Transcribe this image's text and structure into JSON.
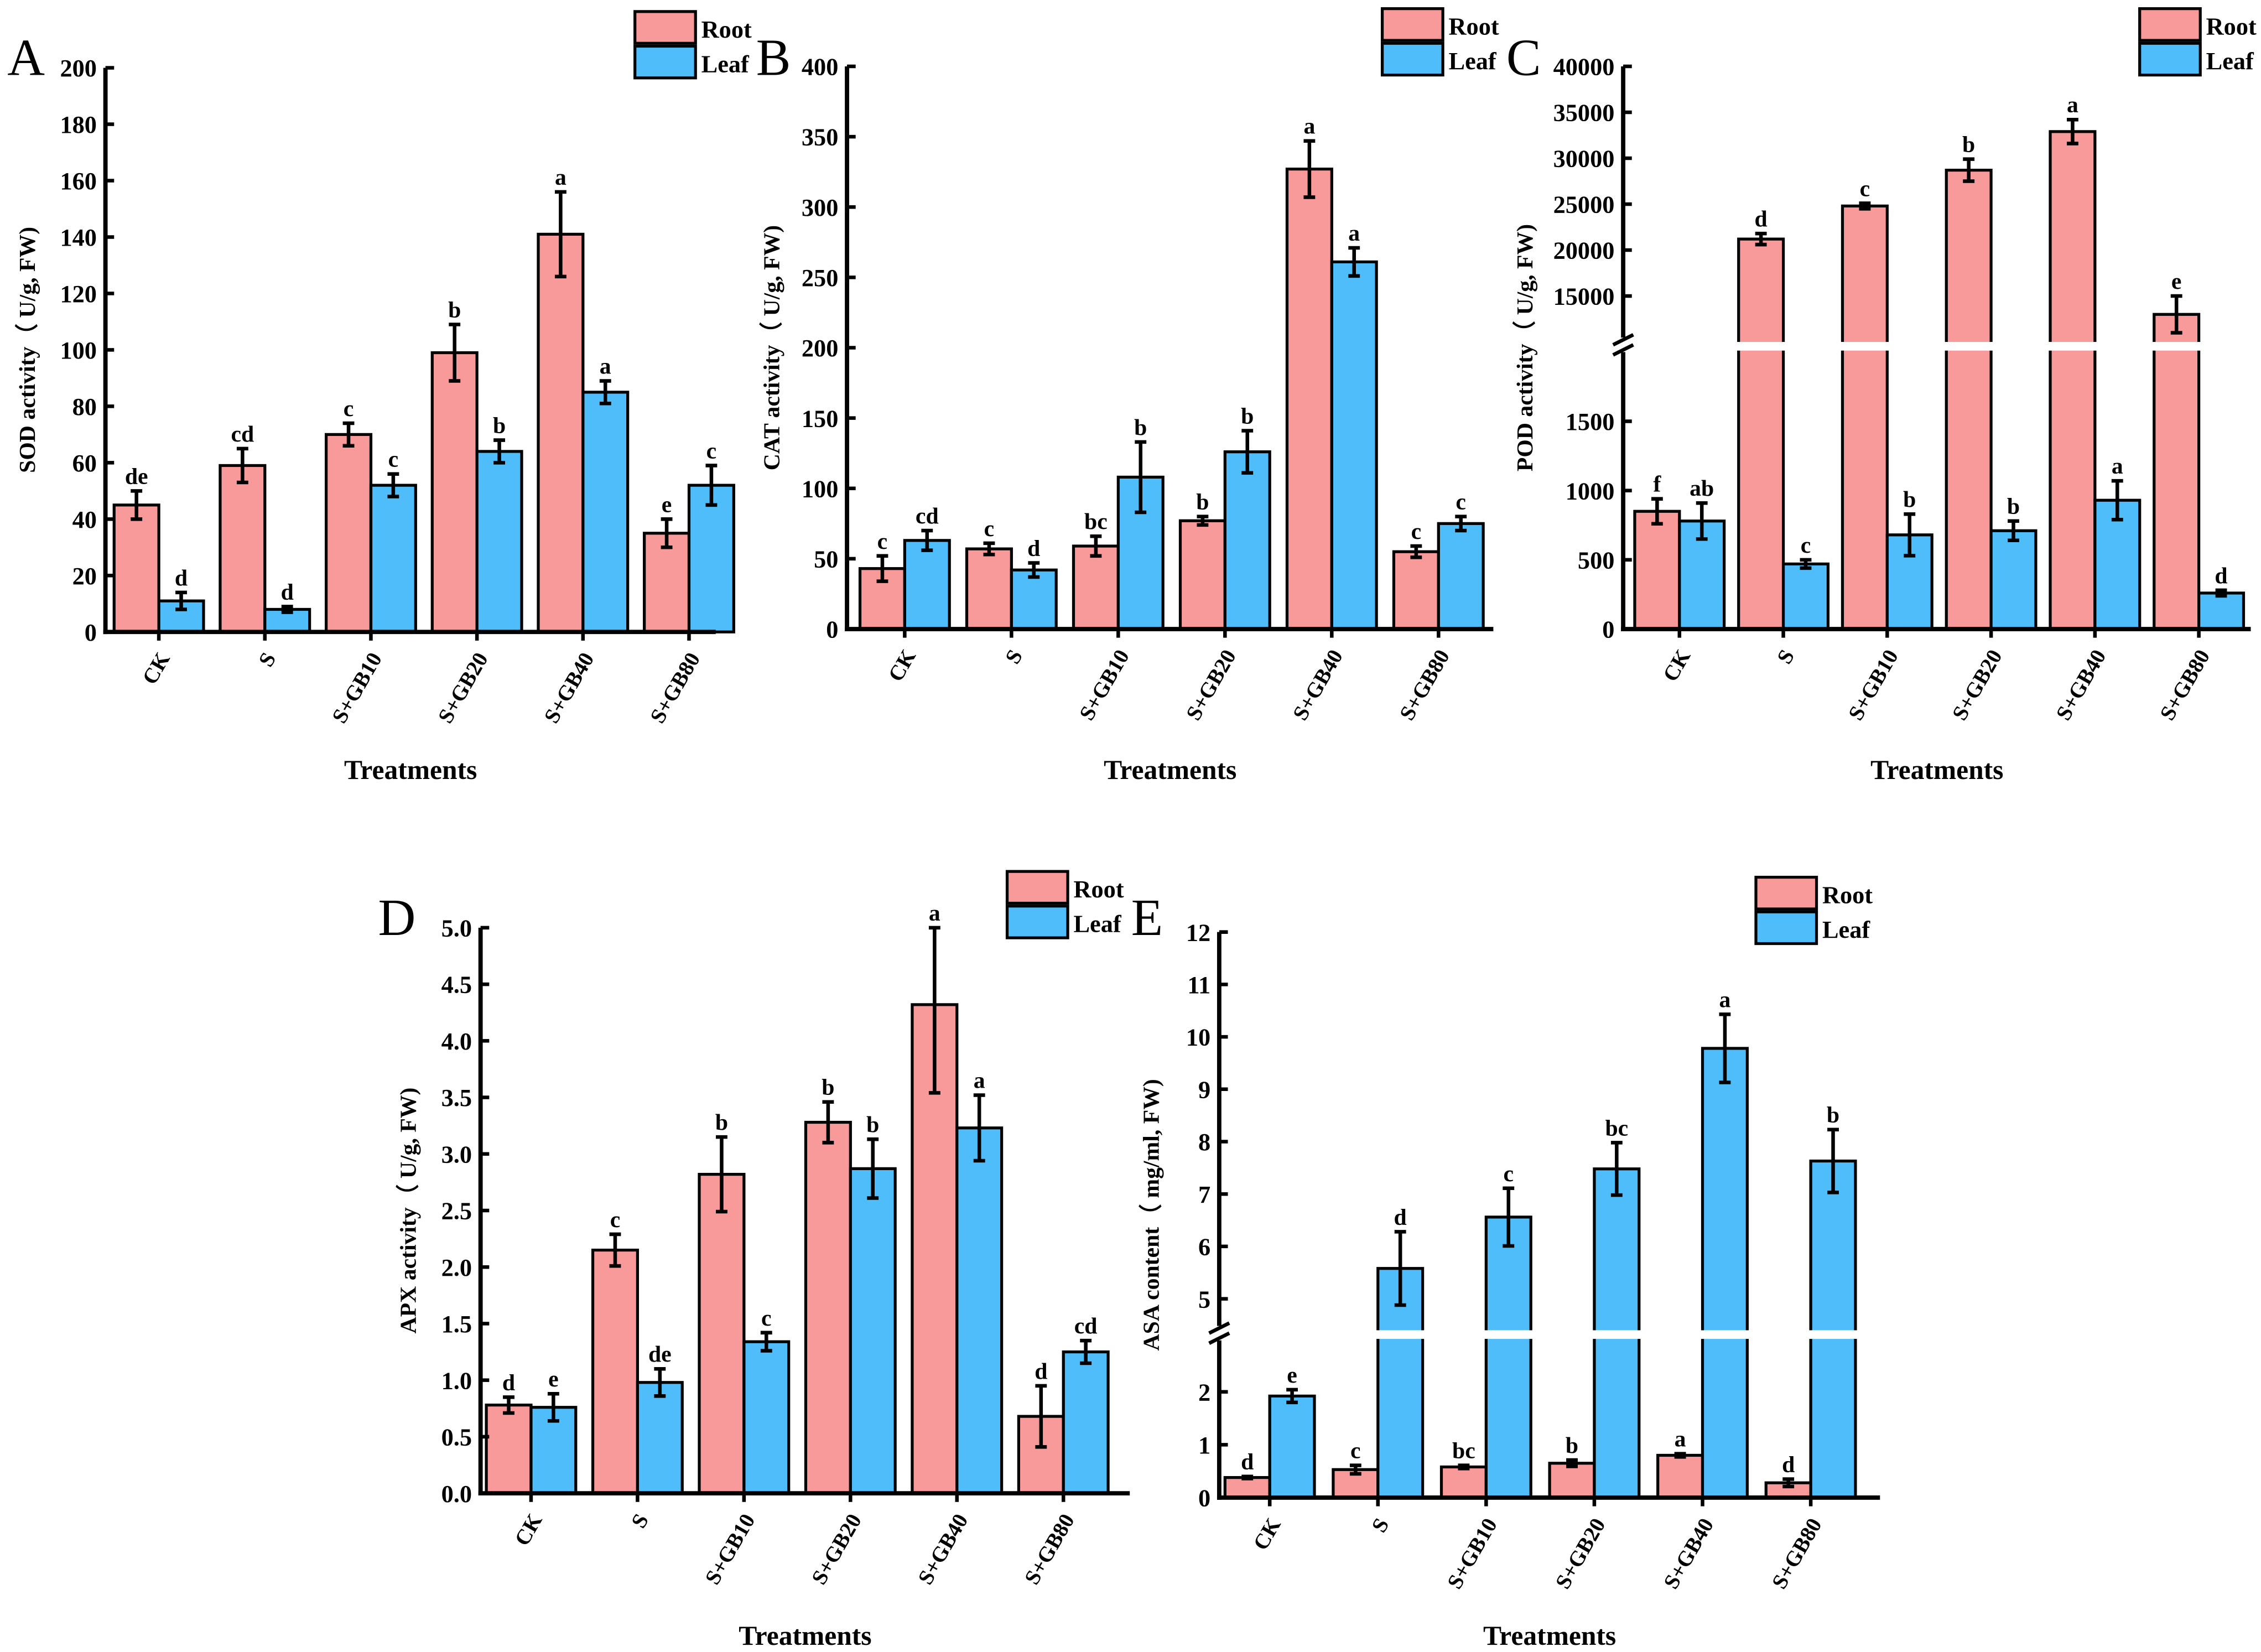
{
  "colors": {
    "root": "#F99A9A",
    "leaf": "#4FBDF9"
  },
  "chart_data": [
    {
      "type": "bar",
      "panel": "A",
      "ylabel": "SOD activity（ U/g, FW)",
      "xlabel": "Treatments",
      "categories": [
        "CK",
        "S",
        "S+GB10",
        "S+GB20",
        "S+GB40",
        "S+GB80"
      ],
      "legend": [
        "Root",
        "Leaf"
      ],
      "legend_placement": "top-right",
      "ylim": [
        0,
        200
      ],
      "yticks": [
        0,
        20,
        40,
        60,
        80,
        100,
        120,
        140,
        160,
        180,
        200
      ],
      "series": [
        {
          "name": "Root",
          "values": [
            45,
            59,
            70,
            99,
            141,
            35
          ],
          "errors": [
            5,
            6,
            4,
            10,
            15,
            5
          ],
          "letters": [
            "de",
            "cd",
            "c",
            "b",
            "a",
            "e"
          ]
        },
        {
          "name": "Leaf",
          "values": [
            11,
            8,
            52,
            64,
            85,
            52
          ],
          "errors": [
            3,
            1,
            4,
            4,
            4,
            7
          ],
          "letters": [
            "d",
            "d",
            "c",
            "b",
            "a",
            "c"
          ]
        }
      ]
    },
    {
      "type": "bar",
      "panel": "B",
      "ylabel": "CAT activity（ U/g, FW)",
      "xlabel": "Treatments",
      "categories": [
        "CK",
        "S",
        "S+GB10",
        "S+GB20",
        "S+GB40",
        "S+GB80"
      ],
      "legend": [
        "Root",
        "Leaf"
      ],
      "legend_placement": "top-right",
      "ylim": [
        0,
        400
      ],
      "yticks": [
        0,
        50,
        100,
        150,
        200,
        250,
        300,
        350,
        400
      ],
      "series": [
        {
          "name": "Root",
          "values": [
            43,
            57,
            59,
            77,
            327,
            55
          ],
          "errors": [
            9,
            4,
            7,
            3,
            20,
            4
          ],
          "letters": [
            "c",
            "c",
            "bc",
            "b",
            "a",
            "c"
          ]
        },
        {
          "name": "Leaf",
          "values": [
            63,
            42,
            108,
            126,
            261,
            75
          ],
          "errors": [
            7,
            5,
            25,
            15,
            10,
            5
          ],
          "letters": [
            "cd",
            "d",
            "b",
            "b",
            "a",
            "c"
          ]
        }
      ]
    },
    {
      "type": "bar",
      "panel": "C",
      "ylabel": "POD activity（ U/g, FW)",
      "xlabel": "Treatments",
      "categories": [
        "CK",
        "S",
        "S+GB10",
        "S+GB20",
        "S+GB40",
        "S+GB80"
      ],
      "legend": [
        "Root",
        "Leaf"
      ],
      "legend_placement": "top-right",
      "ylim": [
        0,
        40000
      ],
      "axis_break": [
        2000,
        10000
      ],
      "yticks": [
        0,
        500,
        1000,
        1500,
        15000,
        20000,
        25000,
        30000,
        35000,
        40000
      ],
      "series": [
        {
          "name": "Root",
          "values": [
            850,
            21200,
            24800,
            28700,
            32900,
            13000
          ],
          "errors": [
            90,
            600,
            300,
            1200,
            1300,
            2000
          ],
          "letters": [
            "f",
            "d",
            "c",
            "b",
            "a",
            "e"
          ]
        },
        {
          "name": "Leaf",
          "values": [
            780,
            470,
            680,
            710,
            930,
            260
          ],
          "errors": [
            130,
            30,
            150,
            70,
            140,
            20
          ],
          "letters": [
            "ab",
            "c",
            "b",
            "b",
            "a",
            "d"
          ]
        }
      ]
    },
    {
      "type": "bar",
      "panel": "D",
      "ylabel": "APX activity（ U/g, FW)",
      "xlabel": "Treatments",
      "categories": [
        "CK",
        "S",
        "S+GB10",
        "S+GB20",
        "S+GB40",
        "S+GB80"
      ],
      "legend": [
        "Root",
        "Leaf"
      ],
      "legend_placement": "top-right",
      "ylim": [
        0,
        5
      ],
      "yticks": [
        "0.0",
        "0.5",
        "1.0",
        "1.5",
        "2.0",
        "2.5",
        "3.0",
        "3.5",
        "4.0",
        "4.5",
        "5.0"
      ],
      "series": [
        {
          "name": "Root",
          "values": [
            0.78,
            2.15,
            2.82,
            3.28,
            4.32,
            0.68
          ],
          "errors": [
            0.07,
            0.14,
            0.33,
            0.18,
            0.78,
            0.27
          ],
          "letters": [
            "d",
            "c",
            "b",
            "b",
            "a",
            "d"
          ]
        },
        {
          "name": "Leaf",
          "values": [
            0.76,
            0.98,
            1.34,
            2.87,
            3.23,
            1.25
          ],
          "errors": [
            0.12,
            0.12,
            0.08,
            0.26,
            0.29,
            0.1
          ],
          "letters": [
            "e",
            "de",
            "c",
            "b",
            "a",
            "cd"
          ]
        }
      ]
    },
    {
      "type": "bar",
      "panel": "E",
      "ylabel": "ASA content（ mg/ml, FW)",
      "xlabel": "Treatments",
      "categories": [
        "CK",
        "S",
        "S+GB10",
        "S+GB20",
        "S+GB40",
        "S+GB80"
      ],
      "legend": [
        "Root",
        "Leaf"
      ],
      "legend_placement": "top-center",
      "ylim": [
        0,
        12
      ],
      "axis_break": [
        3,
        4.4
      ],
      "yticks": [
        0,
        1,
        2,
        5,
        6,
        7,
        8,
        9,
        10,
        11,
        12
      ],
      "series": [
        {
          "name": "Root",
          "values": [
            0.38,
            0.53,
            0.58,
            0.65,
            0.8,
            0.28
          ],
          "errors": [
            0.02,
            0.08,
            0.03,
            0.06,
            0.03,
            0.07
          ],
          "letters": [
            "d",
            "c",
            "bc",
            "b",
            "a",
            "d"
          ]
        },
        {
          "name": "Leaf",
          "values": [
            1.92,
            5.58,
            6.56,
            7.48,
            9.78,
            7.63
          ],
          "errors": [
            0.12,
            0.7,
            0.55,
            0.5,
            0.65,
            0.6
          ],
          "letters": [
            "e",
            "d",
            "c",
            "bc",
            "a",
            "b"
          ]
        }
      ]
    }
  ]
}
